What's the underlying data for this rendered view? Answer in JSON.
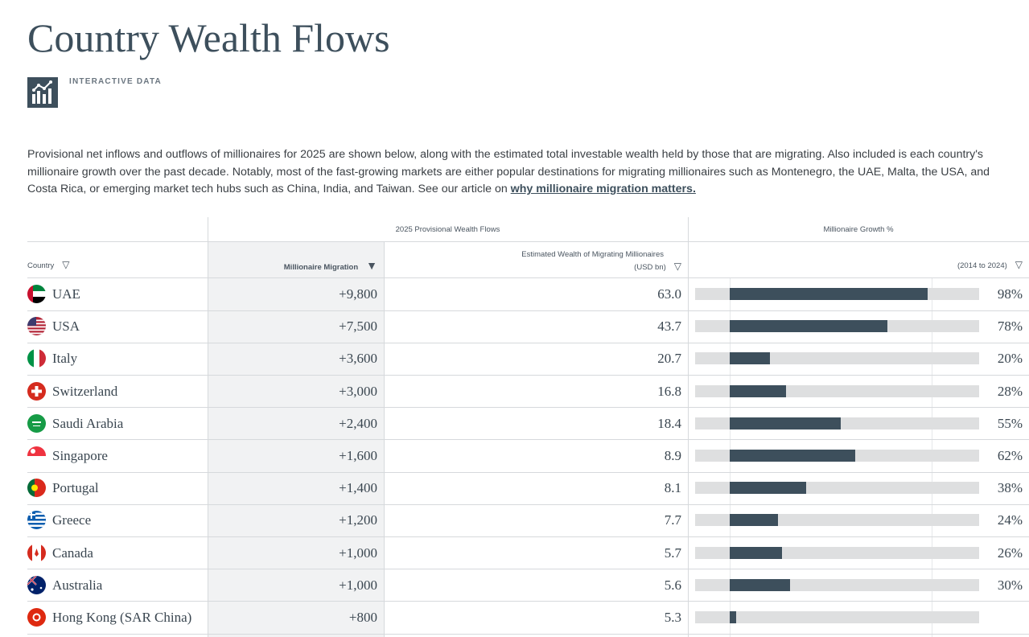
{
  "page": {
    "title": "Country Wealth Flows",
    "badge_label": "INTERACTIVE DATA",
    "badge_icon": "chart-icon",
    "intro": "Provisional net inflows and outflows of millionaires for 2025 are shown below, along with the estimated total investable wealth held by those that are migrating. Also included is each country's millionaire growth over the past decade. Notably, most of the fast-growing markets are either popular destinations for migrating millionaires such as Montenegro, the UAE, Malta, the USA, and Costa Rica, or emerging market tech hubs such as China, India, and Taiwan. See our article on ",
    "intro_link": "why millionaire migration matters."
  },
  "table": {
    "group_flows": "2025 Provisional Wealth Flows",
    "group_growth": "Millionaire Growth %",
    "col_country": "Country",
    "col_migration": "Millionaire Migration",
    "col_wealth_1": "Estimated Wealth of Migrating Millionaires",
    "col_wealth_2": "(USD bn)",
    "col_growth": "(2014 to 2024)",
    "sort_icon": "triangle-down-outline",
    "active_sort_icon": "triangle-down-filled",
    "bar_color": "#3d4f5c",
    "bar_bg_color": "#dedfe0",
    "rows": [
      {
        "country": "UAE",
        "migration": "+9,800",
        "wealth": "63.0",
        "growth": 98,
        "growth_label": "98%",
        "flag": "uae"
      },
      {
        "country": "USA",
        "migration": "+7,500",
        "wealth": "43.7",
        "growth": 78,
        "growth_label": "78%",
        "flag": "usa"
      },
      {
        "country": "Italy",
        "migration": "+3,600",
        "wealth": "20.7",
        "growth": 20,
        "growth_label": "20%",
        "flag": "italy"
      },
      {
        "country": "Switzerland",
        "migration": "+3,000",
        "wealth": "16.8",
        "growth": 28,
        "growth_label": "28%",
        "flag": "switzerland"
      },
      {
        "country": "Saudi Arabia",
        "migration": "+2,400",
        "wealth": "18.4",
        "growth": 55,
        "growth_label": "55%",
        "flag": "saudi"
      },
      {
        "country": "Singapore",
        "migration": "+1,600",
        "wealth": "8.9",
        "growth": 62,
        "growth_label": "62%",
        "flag": "singapore"
      },
      {
        "country": "Portugal",
        "migration": "+1,400",
        "wealth": "8.1",
        "growth": 38,
        "growth_label": "38%",
        "flag": "portugal"
      },
      {
        "country": "Greece",
        "migration": "+1,200",
        "wealth": "7.7",
        "growth": 24,
        "growth_label": "24%",
        "flag": "greece"
      },
      {
        "country": "Canada",
        "migration": "+1,000",
        "wealth": "5.7",
        "growth": 26,
        "growth_label": "26%",
        "flag": "canada"
      },
      {
        "country": "Australia",
        "migration": "+1,000",
        "wealth": "5.6",
        "growth": 30,
        "growth_label": "30%",
        "flag": "australia"
      },
      {
        "country": "Hong Kong (SAR China)",
        "migration": "+800",
        "wealth": "5.3",
        "growth": 3,
        "growth_label": "",
        "flag": "hongkong"
      }
    ]
  }
}
